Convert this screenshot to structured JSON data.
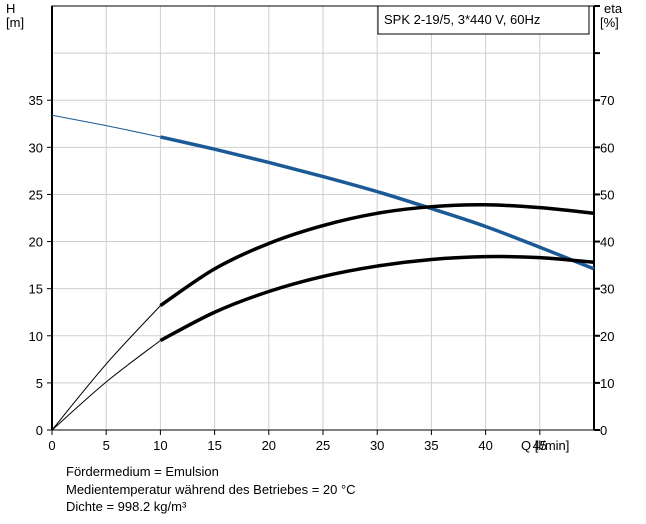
{
  "chart_data": {
    "type": "line",
    "title_box": "SPK 2-19/5, 3*440 V, 60Hz",
    "xlabel": "Q [l/min]",
    "x_ticks": [
      "0",
      "5",
      "10",
      "15",
      "20",
      "25",
      "30",
      "35",
      "40",
      "45"
    ],
    "xlim": [
      0,
      50
    ],
    "ylabel_left": [
      "H",
      "[m]"
    ],
    "ylabel_right": [
      "eta",
      "[%]"
    ],
    "y_left_ticks": [
      "0",
      "5",
      "10",
      "15",
      "20",
      "25",
      "30",
      "35"
    ],
    "y_right_ticks": [
      "0",
      "10",
      "20",
      "30",
      "40",
      "50",
      "60",
      "70"
    ],
    "ylim_left": [
      0,
      45
    ],
    "ylim_right": [
      0,
      90
    ],
    "grid": true,
    "series": [
      {
        "axis": "left",
        "color": "#1c5a96",
        "thin_until_x": 10,
        "points": [
          [
            0,
            33.4
          ],
          [
            5,
            32.3
          ],
          [
            10,
            31.1
          ],
          [
            15,
            29.8
          ],
          [
            20,
            28.4
          ],
          [
            25,
            26.9
          ],
          [
            30,
            25.3
          ],
          [
            35,
            23.5
          ],
          [
            40,
            21.6
          ],
          [
            45,
            19.4
          ],
          [
            50,
            17.1
          ]
        ]
      },
      {
        "axis": "left",
        "color": "#000000",
        "thin_until_x": 10,
        "points": [
          [
            0,
            0
          ],
          [
            5,
            7.0
          ],
          [
            10,
            13.2
          ],
          [
            15,
            17.1
          ],
          [
            20,
            19.8
          ],
          [
            25,
            21.7
          ],
          [
            30,
            23.0
          ],
          [
            35,
            23.7
          ],
          [
            40,
            23.9
          ],
          [
            45,
            23.6
          ],
          [
            50,
            23.0
          ]
        ]
      },
      {
        "axis": "left",
        "color": "#000000",
        "thin_until_x": 10,
        "points": [
          [
            0,
            0
          ],
          [
            5,
            5.1
          ],
          [
            10,
            9.5
          ],
          [
            15,
            12.5
          ],
          [
            20,
            14.7
          ],
          [
            25,
            16.3
          ],
          [
            30,
            17.4
          ],
          [
            35,
            18.1
          ],
          [
            40,
            18.4
          ],
          [
            45,
            18.3
          ],
          [
            50,
            17.8
          ]
        ]
      }
    ]
  },
  "notes": [
    "Fördermedium = Emulsion",
    "Medientemperatur während des Betriebes = 20 °C",
    "Dichte = 998.2 kg/m³"
  ]
}
